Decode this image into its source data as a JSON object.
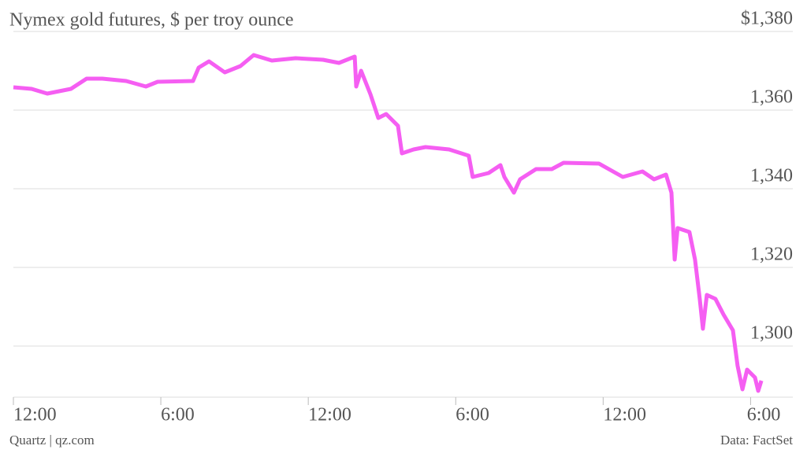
{
  "chart_data": {
    "type": "line",
    "title": "Nymex gold futures, $ per troy ounce",
    "source": "Data: FactSet",
    "credit": "Quartz | qz.com",
    "x": [
      0,
      0.74,
      1.38,
      2.34,
      2.98,
      3.62,
      4.59,
      5.39,
      5.87,
      7.31,
      7.54,
      7.96,
      8.6,
      9.24,
      9.78,
      10.52,
      11.48,
      12.6,
      13.25,
      13.89,
      13.95,
      14.15,
      14.53,
      14.85,
      15.17,
      15.65,
      15.81,
      16.29,
      16.77,
      17.73,
      18.53,
      18.69,
      19.34,
      19.82,
      19.98,
      20.37,
      20.62,
      21.27,
      21.91,
      22.39,
      23.83,
      24.8,
      25.6,
      26.07,
      26.56,
      26.78,
      26.91,
      27.03,
      27.51,
      27.74,
      27.93,
      28.06,
      28.22,
      28.57,
      28.9,
      29.28,
      29.47,
      29.67,
      29.86,
      30.18,
      30.31,
      30.44
    ],
    "series": [
      {
        "name": "Gold futures",
        "color": "#f55ef2",
        "values": [
          1365.8,
          1365.4,
          1364.2,
          1365.4,
          1368,
          1368,
          1367.4,
          1366,
          1367.2,
          1367.4,
          1370.8,
          1372.4,
          1369.6,
          1371.2,
          1374,
          1372.6,
          1373.2,
          1372.8,
          1372,
          1373.6,
          1366,
          1370,
          1364,
          1358,
          1359,
          1356,
          1349,
          1350,
          1350.6,
          1350,
          1348.4,
          1343,
          1344,
          1346,
          1343,
          1339,
          1342.4,
          1345,
          1345,
          1346.6,
          1346.4,
          1343,
          1344.4,
          1342.4,
          1343.6,
          1339,
          1322,
          1330,
          1329,
          1322,
          1312,
          1304.4,
          1313,
          1312,
          1308,
          1304,
          1295,
          1289,
          1294,
          1292,
          1288.6,
          1291.2
        ]
      }
    ],
    "xlim": [
      0,
      30.5
    ],
    "xticks": [
      {
        "value": 0,
        "label": "12:00"
      },
      {
        "value": 6,
        "label": "6:00"
      },
      {
        "value": 12,
        "label": "12:00"
      },
      {
        "value": 18,
        "label": "6:00"
      },
      {
        "value": 24,
        "label": "12:00"
      },
      {
        "value": 30,
        "label": "6:00"
      }
    ],
    "ylim": [
      1287,
      1380
    ],
    "yticks": [
      {
        "value": 1300,
        "label": "1,300"
      },
      {
        "value": 1320,
        "label": "1,320"
      },
      {
        "value": 1340,
        "label": "1,340"
      },
      {
        "value": 1360,
        "label": "1,360"
      },
      {
        "value": 1380,
        "label": "$1,380"
      }
    ],
    "grid": true
  }
}
